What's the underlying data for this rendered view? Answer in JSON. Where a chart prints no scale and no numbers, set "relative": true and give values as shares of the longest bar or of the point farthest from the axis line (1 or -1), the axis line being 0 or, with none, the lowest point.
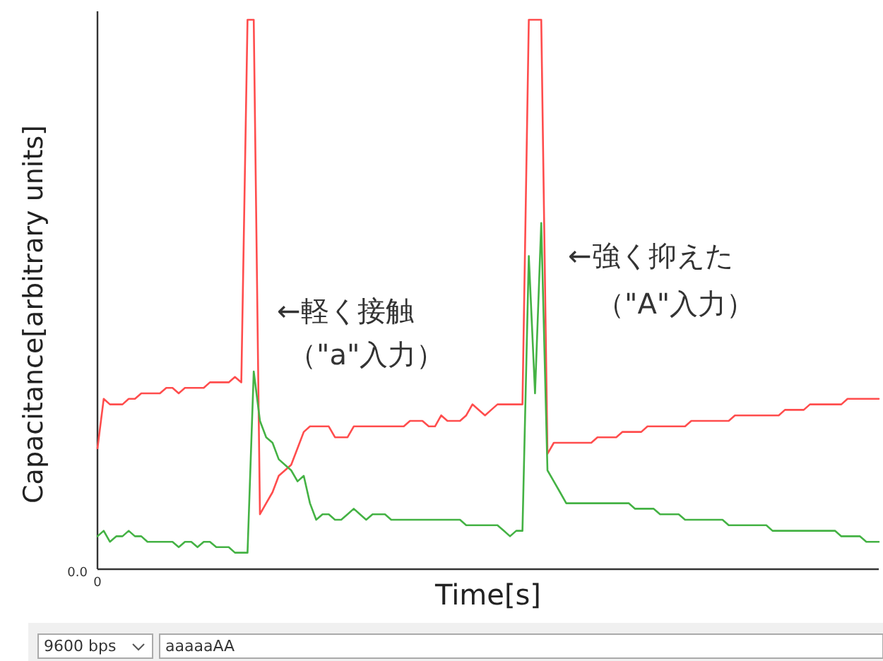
{
  "chart_data": {
    "type": "line",
    "relative": true,
    "xlabel": "Time[s]",
    "ylabel": "Capacitance[arbitrary units]",
    "annotations": [
      "←軽く接触",
      "（\"a\"入力）",
      "←強く抑えた",
      "（\"A\"入力）",
      "0.0",
      "9600 bps",
      "aaaaaAA",
      "0"
    ],
    "categories": [
      null,
      null,
      null,
      null,
      null,
      null,
      null,
      null,
      null,
      null,
      null,
      null,
      null,
      null,
      null,
      null,
      null,
      null,
      null,
      null,
      null,
      null,
      null,
      null,
      null,
      null,
      null,
      null,
      null,
      null,
      null,
      null,
      null,
      null,
      null,
      null,
      null,
      null,
      null,
      null,
      null,
      null,
      null,
      null,
      null,
      null,
      null,
      null,
      null,
      null,
      null,
      null,
      null,
      null,
      null,
      null,
      null,
      null,
      null,
      null,
      null,
      null,
      null,
      null,
      null,
      null,
      null,
      null,
      null,
      null,
      null,
      null,
      null,
      null,
      null,
      null,
      null,
      null,
      null,
      null,
      null,
      null,
      null,
      null,
      null,
      null,
      null,
      null,
      null,
      null,
      null,
      null,
      null,
      null,
      null,
      null,
      null,
      null,
      null,
      null,
      null,
      null,
      null,
      null,
      null,
      null,
      null,
      null,
      null,
      null,
      null,
      null,
      null,
      null,
      null,
      null,
      null,
      null,
      null,
      null,
      null,
      null,
      null,
      null,
      null,
      null
    ],
    "series": [
      {
        "color": "#ff4d4d",
        "values": [
          0.22,
          0.31,
          0.3,
          0.3,
          0.3,
          0.31,
          0.31,
          0.32,
          0.32,
          0.32,
          0.32,
          0.33,
          0.33,
          0.32,
          0.33,
          0.33,
          0.33,
          0.33,
          0.34,
          0.34,
          0.34,
          0.34,
          0.35,
          0.34,
          1,
          1,
          0.1,
          0.12,
          0.14,
          0.17,
          0.18,
          0.19,
          0.22,
          0.25,
          0.26,
          0.26,
          0.26,
          0.26,
          0.24,
          0.24,
          0.24,
          0.26,
          0.26,
          0.26,
          0.26,
          0.26,
          0.26,
          0.26,
          0.26,
          0.26,
          0.27,
          0.27,
          0.27,
          0.26,
          0.26,
          0.28,
          0.27,
          0.27,
          0.27,
          0.28,
          0.3,
          0.29,
          0.28,
          0.29,
          0.3,
          0.3,
          0.3,
          0.3,
          0.3,
          1,
          1,
          1,
          0.21,
          0.23,
          0.23,
          0.23,
          0.23,
          0.23,
          0.23,
          0.23,
          0.24,
          0.24,
          0.24,
          0.24,
          0.25,
          0.25,
          0.25,
          0.25,
          0.26,
          0.26,
          0.26,
          0.26,
          0.26,
          0.26,
          0.26,
          0.27,
          0.27,
          0.27,
          0.27,
          0.27,
          0.27,
          0.27,
          0.28,
          0.28,
          0.28,
          0.28,
          0.28,
          0.28,
          0.28,
          0.28,
          0.29,
          0.29,
          0.29,
          0.29,
          0.3,
          0.3,
          0.3,
          0.3,
          0.3,
          0.3,
          0.31,
          0.31,
          0.31,
          0.31,
          0.31,
          0.31
        ]
      },
      {
        "color": "#44b244",
        "values": [
          0.06,
          0.07,
          0.05,
          0.06,
          0.06,
          0.07,
          0.06,
          0.06,
          0.05,
          0.05,
          0.05,
          0.05,
          0.05,
          0.04,
          0.05,
          0.05,
          0.04,
          0.05,
          0.05,
          0.04,
          0.04,
          0.04,
          0.03,
          0.03,
          0.03,
          0.36,
          0.27,
          0.24,
          0.23,
          0.2,
          0.19,
          0.18,
          0.16,
          0.17,
          0.12,
          0.09,
          0.1,
          0.1,
          0.09,
          0.09,
          0.1,
          0.11,
          0.1,
          0.09,
          0.1,
          0.1,
          0.1,
          0.09,
          0.09,
          0.09,
          0.09,
          0.09,
          0.09,
          0.09,
          0.09,
          0.09,
          0.09,
          0.09,
          0.09,
          0.08,
          0.08,
          0.08,
          0.08,
          0.08,
          0.08,
          0.07,
          0.06,
          0.07,
          0.07,
          0.57,
          0.32,
          0.63,
          0.18,
          0.16,
          0.14,
          0.12,
          0.12,
          0.12,
          0.12,
          0.12,
          0.12,
          0.12,
          0.12,
          0.12,
          0.12,
          0.12,
          0.11,
          0.11,
          0.11,
          0.11,
          0.1,
          0.1,
          0.1,
          0.1,
          0.09,
          0.09,
          0.09,
          0.09,
          0.09,
          0.09,
          0.09,
          0.08,
          0.08,
          0.08,
          0.08,
          0.08,
          0.08,
          0.08,
          0.07,
          0.07,
          0.07,
          0.07,
          0.07,
          0.07,
          0.07,
          0.07,
          0.07,
          0.07,
          0.07,
          0.06,
          0.06,
          0.06,
          0.06,
          0.05,
          0.05,
          0.05
        ]
      }
    ]
  }
}
